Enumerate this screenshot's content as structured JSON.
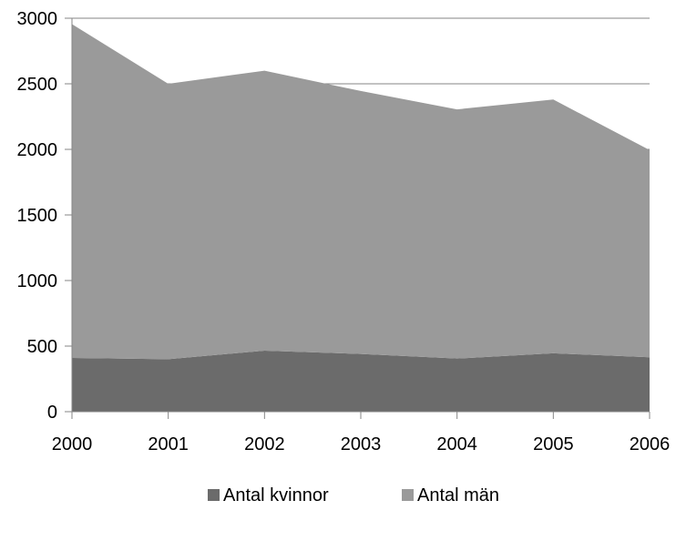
{
  "chart_data": {
    "type": "area",
    "stacked": true,
    "categories": [
      "2000",
      "2001",
      "2002",
      "2003",
      "2004",
      "2005",
      "2006"
    ],
    "series": [
      {
        "name": "Antal kvinnor",
        "values": [
          410,
          400,
          465,
          440,
          405,
          445,
          415
        ],
        "color": "#6b6b6b"
      },
      {
        "name": "Antal män",
        "values": [
          2545,
          2100,
          2135,
          2005,
          1900,
          1935,
          1580
        ],
        "color": "#9a9a9a"
      }
    ],
    "y_ticks": [
      "0",
      "500",
      "1000",
      "1500",
      "2000",
      "2500",
      "3000"
    ],
    "ylim": [
      0,
      3000
    ],
    "grid": true,
    "legend": "bottom"
  }
}
